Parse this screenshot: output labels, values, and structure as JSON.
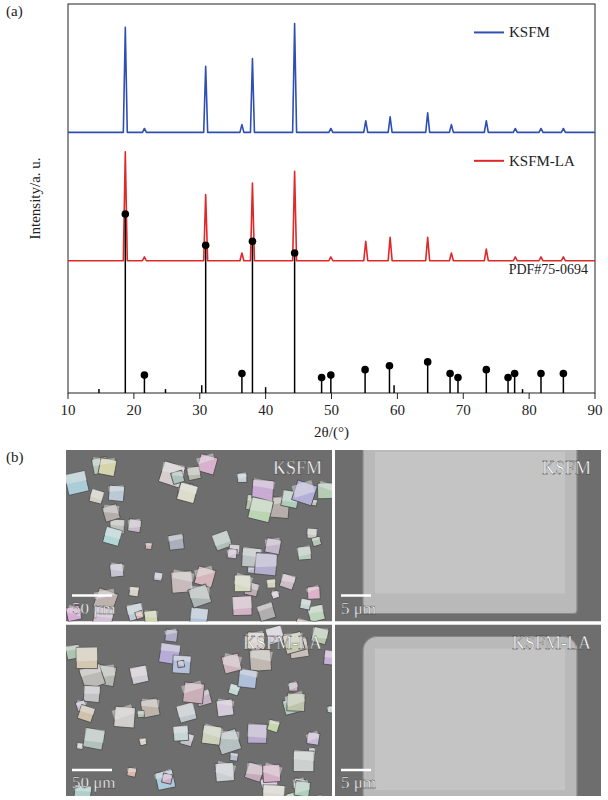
{
  "chart_data": {
    "type": "line",
    "x_label": "2θ/(°)",
    "y_label": "Intensity/a. u.",
    "xlim": [
      10,
      90
    ],
    "xticks": [
      10,
      20,
      30,
      40,
      50,
      60,
      70,
      80,
      90
    ],
    "ylim": [
      0,
      100
    ],
    "tick_labels": "x",
    "legend": "top-right",
    "series": [
      {
        "name": "KSFM",
        "type": "line",
        "color": "#2f4fb5",
        "x": [
          10,
          18.4,
          18.7,
          19.0,
          21.3,
          21.6,
          21.9,
          30.6,
          30.9,
          31.2,
          36.1,
          36.4,
          36.7,
          37.7,
          38.0,
          38.3,
          44.1,
          44.4,
          44.7,
          49.6,
          49.9,
          50.2,
          54.9,
          55.2,
          55.5,
          58.6,
          58.9,
          59.2,
          64.3,
          64.6,
          64.9,
          67.9,
          68.2,
          68.5,
          73.2,
          73.5,
          73.8,
          77.6,
          77.9,
          78.2,
          81.5,
          81.8,
          82.1,
          84.9,
          85.2,
          85.5,
          90
        ],
        "values": [
          67,
          67,
          94,
          67,
          67,
          68,
          67,
          67,
          84,
          67,
          67,
          69,
          67,
          67,
          86,
          67,
          67,
          95,
          67,
          67,
          68,
          67,
          67,
          70,
          67,
          67,
          71,
          67,
          67,
          72,
          67,
          67,
          69,
          67,
          67,
          70,
          67,
          67,
          68,
          67,
          67,
          68,
          67,
          67,
          68,
          67,
          67
        ]
      },
      {
        "name": "KSFM-LA",
        "type": "line",
        "color": "#e02828",
        "x": [
          10,
          18.4,
          18.7,
          19.0,
          21.3,
          21.6,
          21.9,
          30.6,
          30.9,
          31.2,
          36.1,
          36.4,
          36.7,
          37.7,
          38.0,
          38.3,
          44.1,
          44.4,
          44.7,
          49.6,
          49.9,
          50.2,
          54.9,
          55.2,
          55.5,
          58.6,
          58.9,
          59.2,
          64.3,
          64.6,
          64.9,
          67.9,
          68.2,
          68.5,
          73.2,
          73.5,
          73.8,
          77.6,
          77.9,
          78.2,
          81.5,
          81.8,
          82.1,
          84.9,
          85.2,
          85.5,
          90
        ],
        "values": [
          34,
          34,
          62,
          34,
          34,
          35,
          34,
          34,
          51,
          34,
          34,
          36,
          34,
          34,
          54,
          34,
          34,
          57,
          34,
          34,
          35,
          34,
          34,
          39,
          34,
          34,
          40,
          34,
          34,
          40,
          34,
          34,
          36,
          34,
          34,
          37,
          34,
          34,
          35,
          34,
          34,
          35,
          34,
          34,
          35,
          34,
          34
        ]
      },
      {
        "name": "PDF#75-0694",
        "type": "stem",
        "color": "#000000",
        "marker": "circle",
        "x": [
          18.7,
          21.6,
          30.9,
          36.4,
          38.0,
          44.4,
          48.5,
          49.9,
          55.1,
          58.8,
          64.6,
          68.0,
          69.2,
          73.5,
          76.8,
          77.8,
          81.8,
          85.2
        ],
        "values": [
          46,
          4.6,
          38,
          5,
          39,
          36,
          4,
          4.6,
          6,
          7,
          8,
          5,
          4,
          6,
          4,
          5,
          5,
          5
        ]
      },
      {
        "type": "stem",
        "color": "#000000",
        "marker": "none",
        "x": [
          14.7,
          24.8,
          30.3,
          40.0,
          59.5,
          79.0
        ],
        "values": [
          1,
          1,
          2,
          1.5,
          2,
          1
        ]
      }
    ]
  },
  "panels": {
    "a": "(a)",
    "b": "(b)"
  },
  "images": [
    {
      "label": "KSFM",
      "scale_bar": "50 μm"
    },
    {
      "label": "KSFM",
      "scale_bar": "5 μm"
    },
    {
      "label": "KSFM-LA",
      "scale_bar": "50 μm"
    },
    {
      "label": "KSFM-LA",
      "scale_bar": "5 μm"
    }
  ]
}
